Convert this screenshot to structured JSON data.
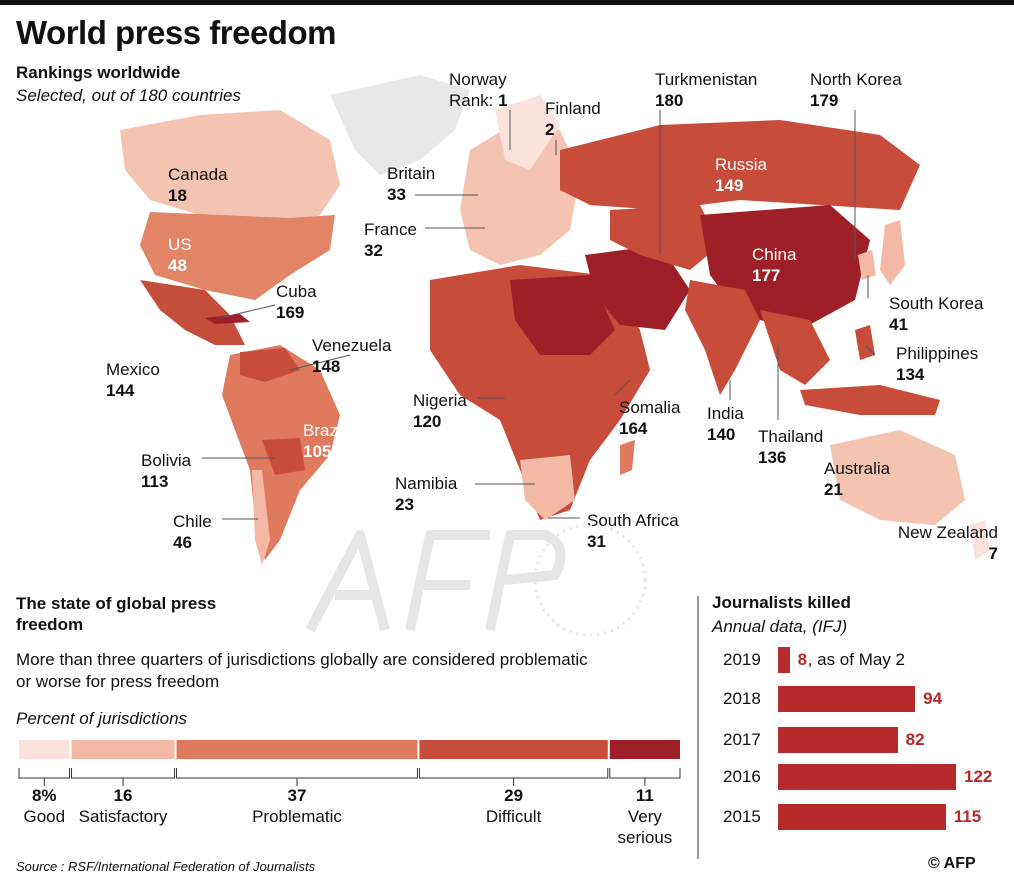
{
  "title": "World press freedom",
  "subtitle": "Rankings worldwide",
  "subnote": "Selected, out of 180 countries",
  "countries": [
    {
      "name": "Canada",
      "rank": "18"
    },
    {
      "name": "US",
      "rank": "48"
    },
    {
      "name": "Mexico",
      "rank": "144"
    },
    {
      "name": "Cuba",
      "rank": "169"
    },
    {
      "name": "Venezuela",
      "rank": "148"
    },
    {
      "name": "Brazil",
      "rank": "105"
    },
    {
      "name": "Bolivia",
      "rank": "113"
    },
    {
      "name": "Chile",
      "rank": "46"
    },
    {
      "name": "Norway",
      "rank_prefix": "Rank: ",
      "rank": "1"
    },
    {
      "name": "Finland",
      "rank": "2"
    },
    {
      "name": "Britain",
      "rank": "33"
    },
    {
      "name": "France",
      "rank": "32"
    },
    {
      "name": "Nigeria",
      "rank": "120"
    },
    {
      "name": "Namibia",
      "rank": "23"
    },
    {
      "name": "South Africa",
      "rank": "31"
    },
    {
      "name": "Somalia",
      "rank": "164"
    },
    {
      "name": "Turkmenistan",
      "rank": "180"
    },
    {
      "name": "Russia",
      "rank": "149"
    },
    {
      "name": "North Korea",
      "rank": "179"
    },
    {
      "name": "China",
      "rank": "177"
    },
    {
      "name": "South Korea",
      "rank": "41"
    },
    {
      "name": "Philippines",
      "rank": "134"
    },
    {
      "name": "India",
      "rank": "140"
    },
    {
      "name": "Thailand",
      "rank": "136"
    },
    {
      "name": "Australia",
      "rank": "21"
    },
    {
      "name": "New Zealand",
      "rank": "7"
    }
  ],
  "state": {
    "title": "The state of global press freedom",
    "description": "More than three quarters of jurisdictions globally are considered problematic or worse for press freedom",
    "note": "Percent of jurisdictions",
    "categories": [
      {
        "label": "Good",
        "value": 8,
        "display": "8%",
        "color": "#fbe3dc"
      },
      {
        "label": "Satisfactory",
        "value": 16,
        "display": "16",
        "color": "#f4b8a6"
      },
      {
        "label": "Problematic",
        "value": 37,
        "display": "37",
        "color": "#e07a5f"
      },
      {
        "label": "Difficult",
        "value": 29,
        "display": "29",
        "color": "#c84c3a"
      },
      {
        "label": "Very serious",
        "label_lines": [
          "Very",
          "serious"
        ],
        "value": 11,
        "display": "11",
        "color": "#9e1f27"
      }
    ]
  },
  "killed": {
    "title": "Journalists killed",
    "subtitle": "Annual data, (IFJ)",
    "rows": [
      {
        "year": "2019",
        "value": 8,
        "note": ", as of May 2"
      },
      {
        "year": "2018",
        "value": 94
      },
      {
        "year": "2017",
        "value": 82
      },
      {
        "year": "2016",
        "value": 122
      },
      {
        "year": "2015",
        "value": 115
      }
    ]
  },
  "source": "Source : RSF/International Federation of Journalists",
  "copyright": "© AFP"
}
